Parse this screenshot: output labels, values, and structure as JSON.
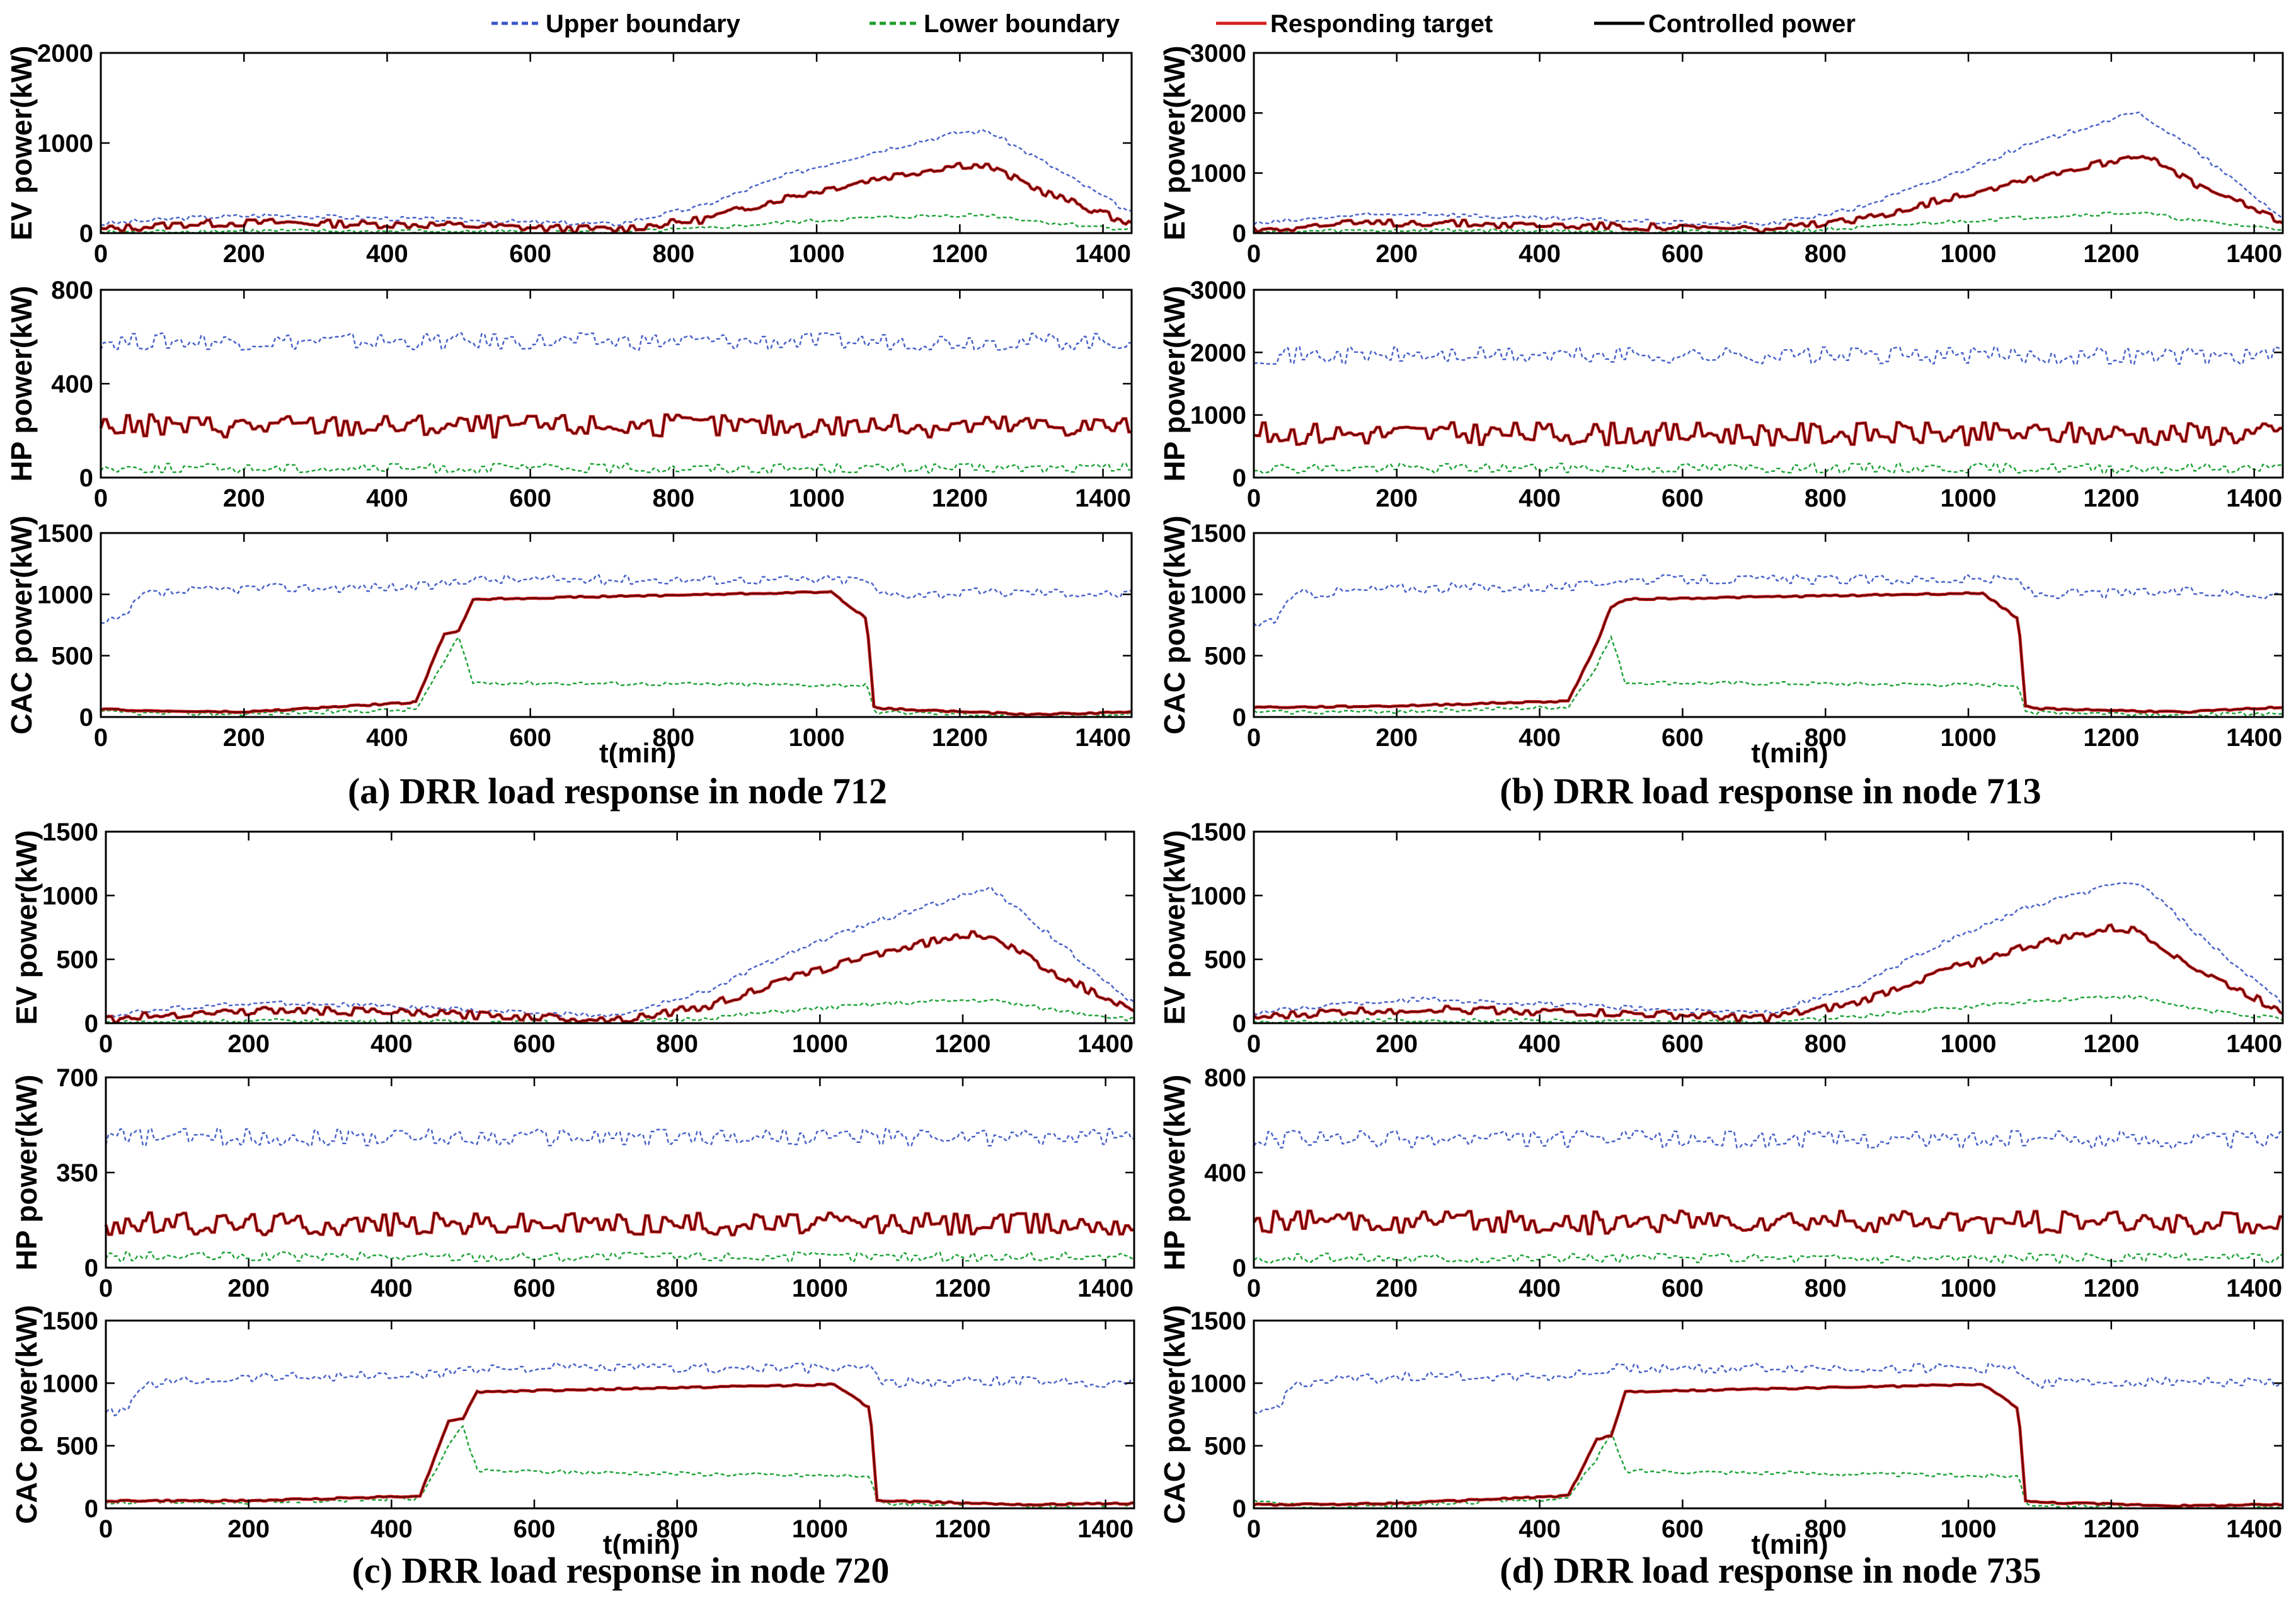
{
  "legend": {
    "items": [
      {
        "label": "Upper boundary",
        "color": "#3b55c8",
        "style": "dashed"
      },
      {
        "label": "Lower boundary",
        "color": "#1e9e2a",
        "style": "dashed"
      },
      {
        "label": "Responding target",
        "color": "#d42020",
        "style": "solid"
      },
      {
        "label": "Controlled power",
        "color": "#000000",
        "style": "solid"
      }
    ]
  },
  "colors": {
    "upper": "#4a63c9",
    "lower": "#20a43a",
    "target": "#c81e1e",
    "controlled": "#4a0000",
    "axis": "#000000"
  },
  "panels": [
    {
      "caption": "(a) DRR load response in node 712",
      "xlabel": "t(min)"
    },
    {
      "caption": "(b) DRR load response in node 713",
      "xlabel": "t(min)"
    },
    {
      "caption": "(c) DRR load response in node 720",
      "xlabel": "t(min)"
    },
    {
      "caption": "(d) DRR load response in node 735",
      "xlabel": "t(min)"
    }
  ],
  "chart_data": [
    {
      "type": "line",
      "panel": "a",
      "ylabel": "EV power(kW)",
      "xlim": [
        0,
        1440
      ],
      "ylim": [
        0,
        2000
      ],
      "xticks": [
        0,
        200,
        400,
        600,
        800,
        1000,
        1200,
        1400
      ],
      "yticks": [
        0,
        1000,
        2000
      ],
      "x": [
        0,
        120,
        240,
        360,
        480,
        600,
        720,
        840,
        960,
        1080,
        1200,
        1240,
        1320,
        1440
      ],
      "series": [
        {
          "name": "Upper boundary",
          "values": [
            100,
            170,
            200,
            170,
            150,
            120,
            100,
            300,
            650,
            900,
            1120,
            1130,
            780,
            220
          ]
        },
        {
          "name": "Responding target",
          "values": [
            40,
            100,
            120,
            100,
            90,
            60,
            40,
            150,
            400,
            600,
            760,
            740,
            450,
            100
          ]
        },
        {
          "name": "Lower boundary",
          "values": [
            10,
            20,
            25,
            20,
            20,
            15,
            10,
            50,
            120,
            170,
            200,
            200,
            120,
            40
          ]
        }
      ]
    },
    {
      "type": "line",
      "panel": "a",
      "ylabel": "HP power(kW)",
      "xlim": [
        0,
        1440
      ],
      "ylim": [
        0,
        800
      ],
      "xticks": [
        0,
        200,
        400,
        600,
        800,
        1000,
        1200,
        1400
      ],
      "yticks": [
        0,
        400,
        800
      ],
      "x": [
        0,
        1440
      ],
      "series": [
        {
          "name": "Upper boundary",
          "values": [
            580,
            580
          ]
        },
        {
          "name": "Responding target",
          "values": [
            220,
            220
          ]
        },
        {
          "name": "Lower boundary",
          "values": [
            40,
            40
          ]
        }
      ]
    },
    {
      "type": "line",
      "panel": "a",
      "ylabel": "CAC power(kW)",
      "xlabel": "t(min)",
      "xlim": [
        0,
        1440
      ],
      "ylim": [
        0,
        1500
      ],
      "xticks": [
        0,
        200,
        400,
        600,
        800,
        1000,
        1200,
        1400
      ],
      "yticks": [
        0,
        500,
        1000,
        1500
      ],
      "x": [
        0,
        30,
        60,
        200,
        440,
        480,
        500,
        520,
        1020,
        1070,
        1080,
        1090,
        1300,
        1440
      ],
      "series": [
        {
          "name": "Upper boundary",
          "values": [
            750,
            800,
            1000,
            1050,
            1060,
            1080,
            1120,
            1120,
            1120,
            1120,
            1050,
            1000,
            1020,
            1000
          ]
        },
        {
          "name": "Responding target",
          "values": [
            60,
            60,
            50,
            40,
            120,
            680,
            700,
            960,
            1020,
            800,
            80,
            70,
            20,
            40
          ]
        },
        {
          "name": "Lower boundary",
          "values": [
            40,
            40,
            30,
            25,
            60,
            450,
            650,
            280,
            260,
            260,
            50,
            40,
            10,
            20
          ]
        }
      ]
    },
    {
      "type": "line",
      "panel": "b",
      "ylabel": "EV power(kW)",
      "xlim": [
        0,
        1440
      ],
      "ylim": [
        0,
        3000
      ],
      "xticks": [
        0,
        200,
        400,
        600,
        800,
        1000,
        1200,
        1400
      ],
      "yticks": [
        0,
        1000,
        2000,
        3000
      ],
      "x": [
        0,
        120,
        240,
        360,
        480,
        600,
        720,
        840,
        960,
        1080,
        1200,
        1240,
        1320,
        1440
      ],
      "series": [
        {
          "name": "Upper boundary",
          "values": [
            150,
            280,
            330,
            260,
            220,
            170,
            150,
            400,
            900,
            1450,
            1900,
            2000,
            1350,
            250
          ]
        },
        {
          "name": "Responding target",
          "values": [
            60,
            150,
            180,
            140,
            120,
            90,
            60,
            200,
            550,
            900,
            1200,
            1320,
            800,
            200
          ]
        },
        {
          "name": "Lower boundary",
          "values": [
            20,
            40,
            50,
            40,
            30,
            25,
            20,
            80,
            180,
            260,
            330,
            340,
            200,
            60
          ]
        }
      ]
    },
    {
      "type": "line",
      "panel": "b",
      "ylabel": "HP power(kW)",
      "xlim": [
        0,
        1440
      ],
      "ylim": [
        0,
        3000
      ],
      "xticks": [
        0,
        200,
        400,
        600,
        800,
        1000,
        1200,
        1400
      ],
      "yticks": [
        0,
        1000,
        2000,
        3000
      ],
      "x": [
        0,
        1440
      ],
      "series": [
        {
          "name": "Upper boundary",
          "values": [
            1950,
            1950
          ]
        },
        {
          "name": "Responding target",
          "values": [
            700,
            700
          ]
        },
        {
          "name": "Lower boundary",
          "values": [
            150,
            150
          ]
        }
      ]
    },
    {
      "type": "line",
      "panel": "b",
      "ylabel": "CAC power(kW)",
      "xlabel": "t(min)",
      "xlim": [
        0,
        1440
      ],
      "ylim": [
        0,
        1500
      ],
      "xticks": [
        0,
        200,
        400,
        600,
        800,
        1000,
        1200,
        1400
      ],
      "yticks": [
        0,
        500,
        1000,
        1500
      ],
      "x": [
        0,
        30,
        60,
        200,
        440,
        480,
        500,
        520,
        1020,
        1070,
        1080,
        1090,
        1300,
        1440
      ],
      "series": [
        {
          "name": "Upper boundary",
          "values": [
            750,
            800,
            1000,
            1050,
            1060,
            1080,
            1120,
            1120,
            1120,
            1120,
            1050,
            1000,
            1020,
            1000
          ]
        },
        {
          "name": "Responding target",
          "values": [
            80,
            80,
            80,
            90,
            130,
            600,
            900,
            960,
            1010,
            800,
            90,
            70,
            40,
            80
          ]
        },
        {
          "name": "Lower boundary",
          "values": [
            40,
            40,
            40,
            45,
            80,
            420,
            650,
            280,
            260,
            260,
            50,
            40,
            20,
            30
          ]
        }
      ]
    },
    {
      "type": "line",
      "panel": "c",
      "ylabel": "EV power(kW)",
      "xlim": [
        0,
        1440
      ],
      "ylim": [
        0,
        1500
      ],
      "xticks": [
        0,
        200,
        400,
        600,
        800,
        1000,
        1200,
        1400
      ],
      "yticks": [
        0,
        500,
        1000,
        1500
      ],
      "x": [
        0,
        120,
        240,
        360,
        480,
        600,
        720,
        840,
        960,
        1080,
        1200,
        1240,
        1320,
        1440
      ],
      "series": [
        {
          "name": "Upper boundary",
          "values": [
            60,
            130,
            160,
            140,
            110,
            80,
            60,
            250,
            560,
            800,
            1000,
            1050,
            700,
            150
          ]
        },
        {
          "name": "Responding target",
          "values": [
            30,
            80,
            100,
            90,
            70,
            50,
            30,
            130,
            350,
            550,
            690,
            690,
            420,
            80
          ]
        },
        {
          "name": "Lower boundary",
          "values": [
            5,
            15,
            20,
            15,
            12,
            10,
            5,
            40,
            100,
            150,
            180,
            180,
            110,
            30
          ]
        }
      ]
    },
    {
      "type": "line",
      "panel": "c",
      "ylabel": "HP power(kW)",
      "xlim": [
        0,
        1440
      ],
      "ylim": [
        0,
        700
      ],
      "xticks": [
        0,
        200,
        400,
        600,
        800,
        1000,
        1200,
        1400
      ],
      "yticks": [
        0,
        350,
        700
      ],
      "x": [
        0,
        1440
      ],
      "series": [
        {
          "name": "Upper boundary",
          "values": [
            480,
            480
          ]
        },
        {
          "name": "Responding target",
          "values": [
            160,
            160
          ]
        },
        {
          "name": "Lower boundary",
          "values": [
            40,
            40
          ]
        }
      ]
    },
    {
      "type": "line",
      "panel": "c",
      "ylabel": "CAC power(kW)",
      "xlabel": "t(min)",
      "xlim": [
        0,
        1440
      ],
      "ylim": [
        0,
        1500
      ],
      "xticks": [
        0,
        200,
        400,
        600,
        800,
        1000,
        1200,
        1400
      ],
      "yticks": [
        0,
        500,
        1000,
        1500
      ],
      "x": [
        0,
        30,
        60,
        200,
        440,
        480,
        500,
        520,
        1020,
        1070,
        1080,
        1090,
        1300,
        1440
      ],
      "series": [
        {
          "name": "Upper boundary",
          "values": [
            750,
            800,
            1000,
            1050,
            1060,
            1080,
            1120,
            1120,
            1120,
            1120,
            1050,
            1000,
            1020,
            1000
          ]
        },
        {
          "name": "Responding target",
          "values": [
            60,
            60,
            60,
            60,
            100,
            700,
            720,
            930,
            990,
            800,
            70,
            60,
            30,
            40
          ]
        },
        {
          "name": "Lower boundary",
          "values": [
            50,
            50,
            50,
            50,
            80,
            500,
            650,
            300,
            260,
            260,
            50,
            40,
            20,
            30
          ]
        }
      ]
    },
    {
      "type": "line",
      "panel": "d",
      "ylabel": "EV power(kW)",
      "xlim": [
        0,
        1440
      ],
      "ylim": [
        0,
        1500
      ],
      "xticks": [
        0,
        200,
        400,
        600,
        800,
        1000,
        1200,
        1400
      ],
      "yticks": [
        0,
        500,
        1000,
        1500
      ],
      "x": [
        0,
        120,
        240,
        360,
        480,
        600,
        720,
        840,
        960,
        1080,
        1200,
        1240,
        1320,
        1440
      ],
      "series": [
        {
          "name": "Upper boundary",
          "values": [
            80,
            150,
            190,
            160,
            130,
            100,
            80,
            280,
            620,
            900,
            1080,
            1100,
            700,
            150
          ]
        },
        {
          "name": "Responding target",
          "values": [
            40,
            90,
            110,
            100,
            80,
            60,
            40,
            150,
            400,
            600,
            740,
            720,
            420,
            90
          ]
        },
        {
          "name": "Lower boundary",
          "values": [
            10,
            20,
            25,
            20,
            15,
            10,
            10,
            50,
            110,
            170,
            210,
            200,
            110,
            30
          ]
        }
      ]
    },
    {
      "type": "line",
      "panel": "d",
      "ylabel": "HP power(kW)",
      "xlim": [
        0,
        1440
      ],
      "ylim": [
        0,
        800
      ],
      "xticks": [
        0,
        200,
        400,
        600,
        800,
        1000,
        1200,
        1400
      ],
      "yticks": [
        0,
        400,
        800
      ],
      "x": [
        0,
        1440
      ],
      "series": [
        {
          "name": "Upper boundary",
          "values": [
            540,
            540
          ]
        },
        {
          "name": "Responding target",
          "values": [
            190,
            190
          ]
        },
        {
          "name": "Lower boundary",
          "values": [
            40,
            40
          ]
        }
      ]
    },
    {
      "type": "line",
      "panel": "d",
      "ylabel": "CAC power(kW)",
      "xlabel": "t(min)",
      "xlim": [
        0,
        1440
      ],
      "ylim": [
        0,
        1500
      ],
      "xticks": [
        0,
        200,
        400,
        600,
        800,
        1000,
        1200,
        1400
      ],
      "yticks": [
        0,
        500,
        1000,
        1500
      ],
      "x": [
        0,
        30,
        60,
        200,
        440,
        480,
        500,
        520,
        1020,
        1070,
        1080,
        1090,
        1300,
        1440
      ],
      "series": [
        {
          "name": "Upper boundary",
          "values": [
            750,
            800,
            1000,
            1050,
            1060,
            1080,
            1120,
            1120,
            1120,
            1120,
            1050,
            1000,
            1020,
            1000
          ]
        },
        {
          "name": "Responding target",
          "values": [
            30,
            30,
            30,
            40,
            100,
            550,
            580,
            930,
            990,
            800,
            60,
            50,
            20,
            30
          ]
        },
        {
          "name": "Lower boundary",
          "values": [
            50,
            50,
            20,
            25,
            80,
            400,
            600,
            300,
            260,
            260,
            50,
            30,
            10,
            20
          ]
        }
      ]
    }
  ]
}
